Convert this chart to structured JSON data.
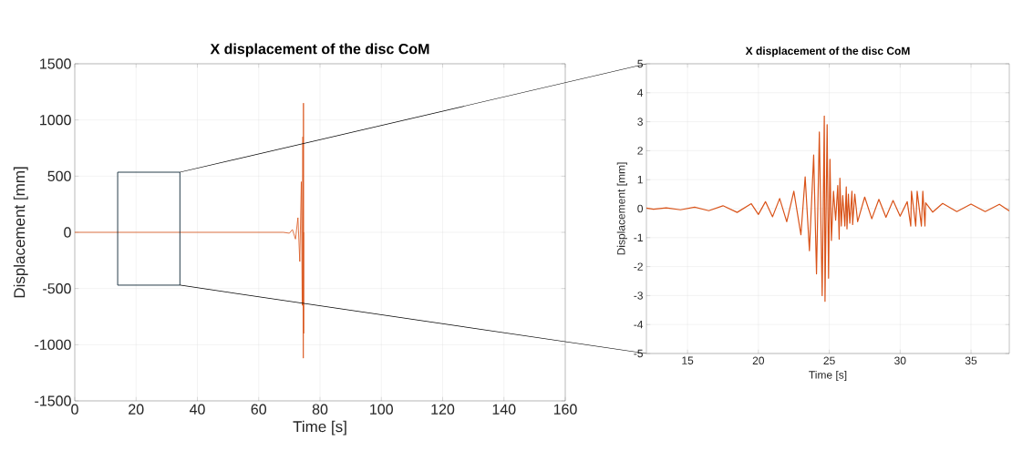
{
  "chart_data": [
    {
      "type": "line",
      "title": "X displacement of the disc CoM",
      "xlabel": "Time [s]",
      "ylabel": "Displacement [mm]",
      "color": "#d95319",
      "grid": true,
      "x": [
        0,
        10,
        20,
        25,
        30,
        40,
        50,
        60,
        68,
        70,
        71,
        72,
        72.8,
        73.4,
        73.9,
        74.2,
        74.4,
        74.55,
        74.6,
        74.65,
        74.7
      ],
      "values": [
        0,
        0,
        0,
        0,
        0,
        0,
        0,
        0,
        0,
        -8,
        25,
        -60,
        130,
        -260,
        450,
        -650,
        850,
        -1120,
        1150,
        -900,
        0
      ],
      "xlim": [
        0,
        160
      ],
      "ylim": [
        -1500,
        1500
      ],
      "xticks": [
        0,
        20,
        40,
        60,
        80,
        100,
        120,
        140,
        160
      ],
      "yticks": [
        -1500,
        -1000,
        -500,
        0,
        500,
        1000,
        1500
      ]
    },
    {
      "type": "line",
      "title": "X displacement of the disc CoM",
      "xlabel": "Time [s]",
      "ylabel": "Displacement [mm]",
      "color": "#d95319",
      "grid": true,
      "x": [
        12.1,
        12.6,
        13.5,
        14.5,
        15.5,
        16.5,
        17.5,
        18.5,
        19.5,
        20,
        20.5,
        21,
        21.5,
        22,
        22.5,
        23,
        23.3,
        23.6,
        23.9,
        24.1,
        24.3,
        24.5,
        24.65,
        24.7,
        24.85,
        24.95,
        25.05,
        25.15,
        25.3,
        25.45,
        25.6,
        25.7,
        25.75,
        25.85,
        25.95,
        26.1,
        26.2,
        26.25,
        26.35,
        26.45,
        26.6,
        26.65,
        26.8,
        27,
        27.5,
        28,
        28.5,
        29,
        29.5,
        30,
        30.5,
        30.75,
        30.8,
        31.1,
        31.2,
        31.5,
        31.6,
        31.75,
        31.8,
        32.3,
        33,
        34,
        35,
        36,
        37,
        37.7
      ],
      "values": [
        0.02,
        -0.02,
        0.03,
        -0.04,
        0.05,
        -0.07,
        0.1,
        -0.13,
        0.17,
        -0.2,
        0.24,
        -0.28,
        0.35,
        -0.45,
        0.6,
        -0.9,
        1.1,
        -1.45,
        1.85,
        -2.25,
        2.65,
        -3.0,
        3.2,
        -3.2,
        2.9,
        -2.4,
        1.7,
        -1.1,
        0.6,
        -0.4,
        0.8,
        -1.05,
        1.05,
        -0.6,
        0.45,
        -0.6,
        0.75,
        -0.7,
        0.5,
        -0.5,
        0.6,
        -0.55,
        0.5,
        -0.45,
        0.4,
        -0.35,
        0.32,
        -0.3,
        0.28,
        -0.26,
        0.24,
        -0.6,
        0.6,
        -0.6,
        0.6,
        -0.6,
        0.6,
        -0.6,
        0.2,
        -0.12,
        0.18,
        -0.1,
        0.16,
        -0.1,
        0.15,
        -0.08
      ],
      "xlim": [
        12.1,
        37.7
      ],
      "ylim": [
        -5,
        5
      ],
      "xticks": [
        15,
        20,
        25,
        30,
        35
      ],
      "yticks": [
        -5,
        -4,
        -3,
        -2,
        -1,
        0,
        1,
        2,
        3,
        4,
        5
      ]
    }
  ]
}
